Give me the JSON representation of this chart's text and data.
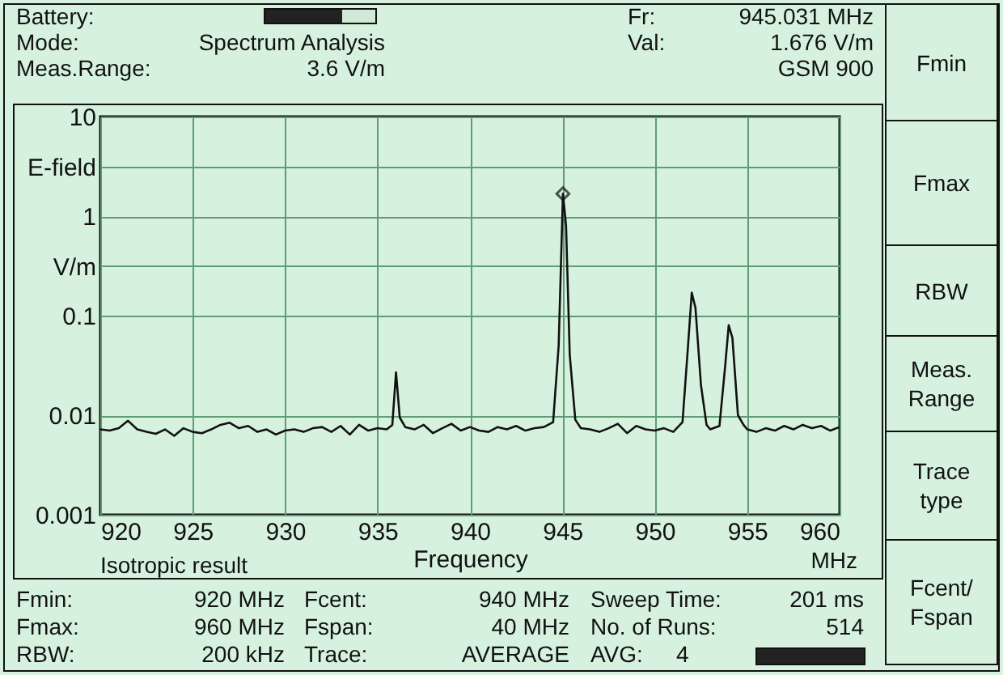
{
  "chart_data": {
    "type": "line",
    "xlabel": "Frequency",
    "annotations": [
      "Battery:",
      "Mode:",
      "Spectrum Analysis",
      "Meas.Range:",
      "3.6 V/m",
      "Fr:",
      "945.031 MHz",
      "Val:",
      "1.676 V/m",
      "GSM 900",
      "Isotropic result",
      "MHz",
      "Fmin:",
      "920 MHz",
      "Fmax:",
      "960 MHz",
      "RBW:",
      "200 kHz",
      "Fcent:",
      "940 MHz",
      "Fspan:",
      "40 MHz",
      "Trace:",
      "AVERAGE",
      "Sweep Time:",
      "201 ms",
      "No. of Runs:",
      "514",
      "AVG:",
      "4",
      "Fmin",
      "Fmax",
      "RBW",
      "Meas. Range",
      "Trace type",
      "Fcent/ Fspan"
    ],
    "log": "y",
    "grid": true,
    "marker": "none",
    "line_style": "solid",
    "xlim": [
      920,
      960
    ],
    "xticks": [
      920,
      925,
      930,
      935,
      940,
      945,
      950,
      955,
      960
    ],
    "ylim": [
      0.001,
      10
    ],
    "yticks": [
      10,
      {
        "value": 3.16,
        "label": "E-field"
      },
      1,
      {
        "value": 0.316,
        "label": "V/m"
      },
      0.1,
      0.01,
      0.001
    ],
    "series": [
      {
        "color": "#111111",
        "x": [
          920,
          920.5,
          921,
          921.5,
          922,
          922.5,
          923,
          923.5,
          924,
          924.5,
          925,
          925.5,
          926,
          926.5,
          927,
          927.5,
          928,
          928.5,
          929,
          929.5,
          930,
          930.5,
          931,
          931.5,
          932,
          932.5,
          933,
          933.5,
          934,
          934.5,
          935,
          935.5,
          935.8,
          936,
          936.2,
          936.5,
          937,
          937.5,
          938,
          938.5,
          939,
          939.5,
          940,
          940.5,
          941,
          941.5,
          942,
          942.5,
          943,
          943.5,
          944,
          944.5,
          944.8,
          945.031,
          945.2,
          945.4,
          945.7,
          946,
          946.5,
          947,
          947.5,
          948,
          948.5,
          949,
          949.5,
          950,
          950.5,
          951,
          951.5,
          951.8,
          952,
          952.2,
          952.5,
          952.8,
          953,
          953.5,
          953.8,
          954,
          954.2,
          954.5,
          954.8,
          955,
          955.5,
          956,
          956.5,
          957,
          957.5,
          958,
          958.5,
          959,
          959.5,
          960
        ],
        "values": [
          0.0072,
          0.007,
          0.0074,
          0.0088,
          0.0072,
          0.0068,
          0.0065,
          0.0072,
          0.0062,
          0.0074,
          0.0068,
          0.0066,
          0.0072,
          0.008,
          0.0084,
          0.0074,
          0.0078,
          0.0068,
          0.0072,
          0.0064,
          0.007,
          0.0072,
          0.0068,
          0.0074,
          0.0076,
          0.0068,
          0.0078,
          0.0064,
          0.008,
          0.007,
          0.0074,
          0.0072,
          0.008,
          0.027,
          0.0095,
          0.0076,
          0.0072,
          0.008,
          0.0066,
          0.0074,
          0.0082,
          0.007,
          0.0076,
          0.007,
          0.0068,
          0.0076,
          0.0072,
          0.0078,
          0.007,
          0.0074,
          0.0076,
          0.0085,
          0.05,
          1.676,
          0.8,
          0.04,
          0.009,
          0.0074,
          0.0072,
          0.0068,
          0.0074,
          0.0082,
          0.0066,
          0.0078,
          0.0072,
          0.007,
          0.0074,
          0.0068,
          0.0085,
          0.05,
          0.17,
          0.12,
          0.02,
          0.008,
          0.0072,
          0.0078,
          0.03,
          0.08,
          0.06,
          0.01,
          0.008,
          0.0072,
          0.0068,
          0.0074,
          0.007,
          0.0078,
          0.0072,
          0.008,
          0.0074,
          0.0078,
          0.007,
          0.0076
        ]
      },
      {
        "type": "scatter",
        "color": "#111111",
        "marker": "diamond",
        "x": [
          945.031
        ],
        "values": [
          1.676
        ]
      }
    ]
  }
}
